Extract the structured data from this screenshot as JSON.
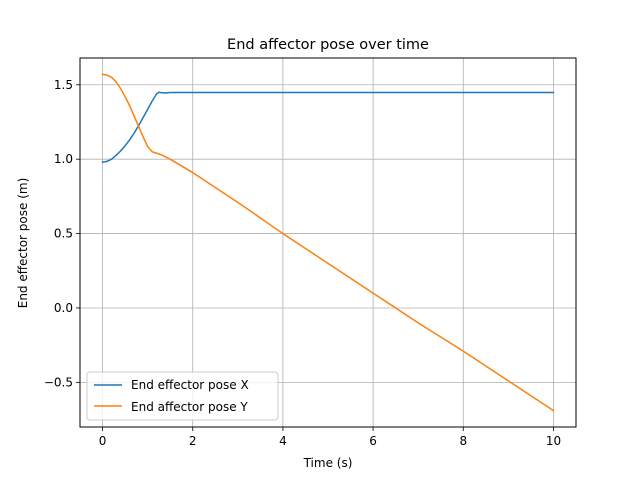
{
  "chart_data": {
    "type": "line",
    "title": "End affector pose over time",
    "xlabel": "Time (s)",
    "ylabel": "End effector pose (m)",
    "xlim": [
      -0.5,
      10.5
    ],
    "ylim": [
      -0.8,
      1.68
    ],
    "xticks": [
      0,
      2,
      4,
      6,
      8,
      10
    ],
    "xtick_labels": [
      "0",
      "2",
      "4",
      "6",
      "8",
      "10"
    ],
    "yticks": [
      -0.5,
      0.0,
      0.5,
      1.0,
      1.5
    ],
    "ytick_labels": [
      "−0.5",
      "0.0",
      "0.5",
      "1.0",
      "1.5"
    ],
    "grid": true,
    "legend_position": "lower-left",
    "series": [
      {
        "name": "End effector pose X",
        "color": "#1f77b4",
        "x": [
          0,
          0.1,
          0.2,
          0.3,
          0.4,
          0.5,
          0.6,
          0.7,
          0.8,
          0.9,
          1.0,
          1.1,
          1.2,
          1.25,
          1.3,
          1.4,
          1.5,
          2,
          4,
          6,
          8,
          10
        ],
        "y": [
          0.98,
          0.985,
          1.0,
          1.025,
          1.055,
          1.09,
          1.13,
          1.175,
          1.225,
          1.28,
          1.335,
          1.39,
          1.44,
          1.45,
          1.447,
          1.445,
          1.448,
          1.448,
          1.448,
          1.448,
          1.448,
          1.448
        ]
      },
      {
        "name": "End affector pose Y",
        "color": "#ff7f0e",
        "x": [
          0,
          0.1,
          0.2,
          0.3,
          0.4,
          0.5,
          0.6,
          0.7,
          0.8,
          0.9,
          1.0,
          1.1,
          1.2,
          1.3,
          1.5,
          2,
          3,
          4,
          5,
          6,
          7,
          8,
          9,
          10
        ],
        "y": [
          1.57,
          1.565,
          1.55,
          1.52,
          1.475,
          1.42,
          1.36,
          1.29,
          1.22,
          1.15,
          1.085,
          1.05,
          1.04,
          1.03,
          1.0,
          0.91,
          0.71,
          0.5,
          0.3,
          0.1,
          -0.1,
          -0.29,
          -0.49,
          -0.69
        ]
      }
    ]
  }
}
